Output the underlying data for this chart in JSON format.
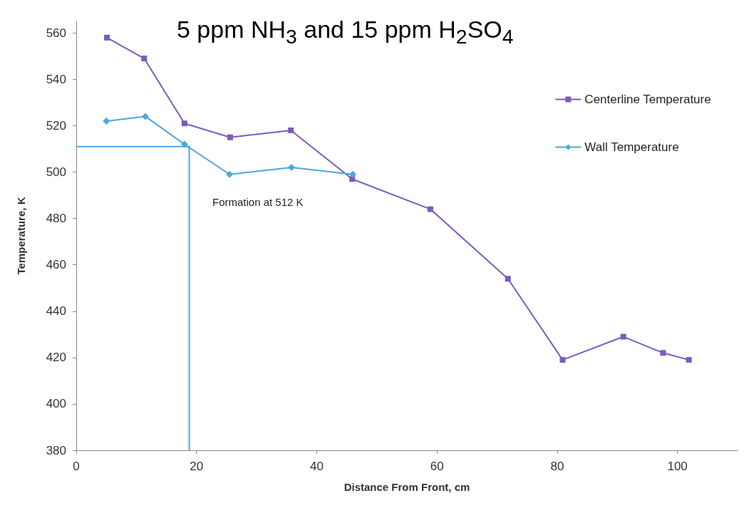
{
  "chart_data": {
    "type": "line",
    "title": "5 ppm NH$_{3}$ and 15 ppm H$_{2}$SO$_{4}$",
    "xlabel": "Distance From Front, cm",
    "ylabel": "Temperature, K",
    "xlim": [
      0,
      110
    ],
    "xticks": [
      0,
      20,
      40,
      60,
      80,
      100
    ],
    "ylim": [
      380,
      565
    ],
    "yticks": [
      380,
      400,
      420,
      440,
      460,
      480,
      500,
      520,
      540,
      560
    ],
    "grid": false,
    "legend": "top right",
    "annotations": [
      "Formation at 512 K"
    ],
    "series": [
      {
        "name": "Centerline Temperature",
        "color": "#7a5cbf",
        "marker": "square",
        "x": [
          5.1,
          11.3,
          18.0,
          25.6,
          35.7,
          45.9,
          58.9,
          71.8,
          80.9,
          91.0,
          97.6,
          101.9
        ],
        "values": [
          558,
          549,
          521,
          515,
          518,
          497,
          484,
          454,
          419,
          429,
          422,
          419
        ]
      },
      {
        "name": "Wall Temperature",
        "color": "#4ea6dc",
        "marker": "diamond",
        "x": [
          5.0,
          11.5,
          18.0,
          25.5,
          35.8,
          46.0
        ],
        "values": [
          522,
          524,
          512,
          499,
          502,
          499
        ]
      },
      {
        "color": "#4ea6dc",
        "marker": "none",
        "x": [
          0,
          18.8,
          18.8
        ],
        "values": [
          511,
          511,
          380
        ]
      }
    ]
  }
}
